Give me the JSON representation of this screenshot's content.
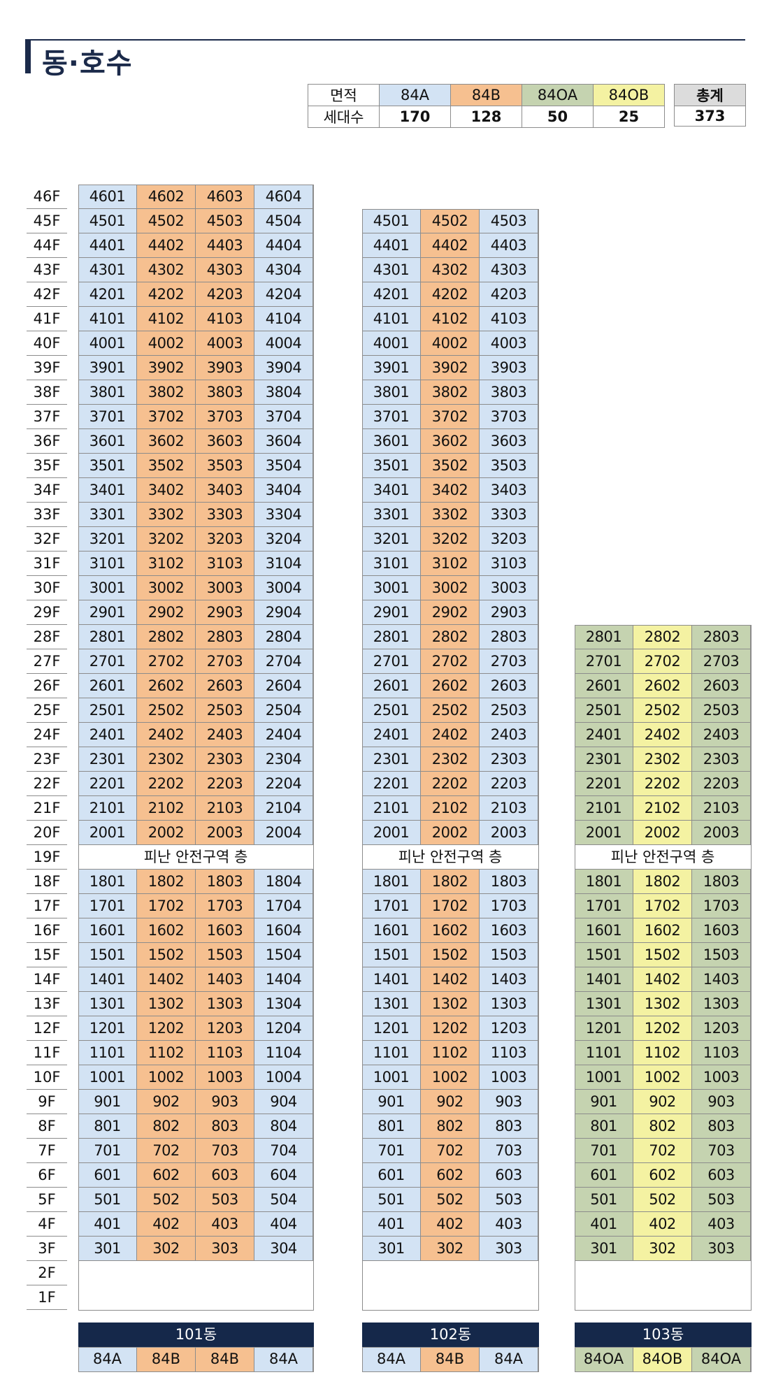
{
  "page": {
    "title": "동·호수"
  },
  "legend": {
    "row_labels": [
      "면적",
      "세대수"
    ],
    "types": [
      {
        "type": "84A",
        "count": "170",
        "color": "#d3e3f4"
      },
      {
        "type": "84B",
        "count": "128",
        "color": "#f6c090"
      },
      {
        "type": "84OA",
        "count": "50",
        "color": "#c5d3b0"
      },
      {
        "type": "84OB",
        "count": "25",
        "color": "#f4f2a2"
      }
    ],
    "total_label": "총계",
    "total_value": "373"
  },
  "floors": [
    "46F",
    "45F",
    "44F",
    "43F",
    "42F",
    "41F",
    "40F",
    "39F",
    "38F",
    "37F",
    "36F",
    "35F",
    "34F",
    "33F",
    "32F",
    "31F",
    "30F",
    "29F",
    "28F",
    "27F",
    "26F",
    "25F",
    "24F",
    "23F",
    "22F",
    "21F",
    "20F",
    "19F",
    "18F",
    "17F",
    "16F",
    "15F",
    "14F",
    "13F",
    "12F",
    "11F",
    "10F",
    "9F",
    "8F",
    "7F",
    "6F",
    "5F",
    "4F",
    "3F",
    "2F",
    "1F"
  ],
  "refuge_floor": "19F",
  "refuge_label": "피난 안전구역 층",
  "buildings": [
    {
      "name": "101동",
      "top_floor": 46,
      "units": [
        "84A",
        "84B",
        "84B",
        "84A"
      ]
    },
    {
      "name": "102동",
      "top_floor": 45,
      "units": [
        "84A",
        "84B",
        "84A"
      ]
    },
    {
      "name": "103동",
      "top_floor": 28,
      "units": [
        "84OA",
        "84OB",
        "84OA"
      ]
    }
  ]
}
